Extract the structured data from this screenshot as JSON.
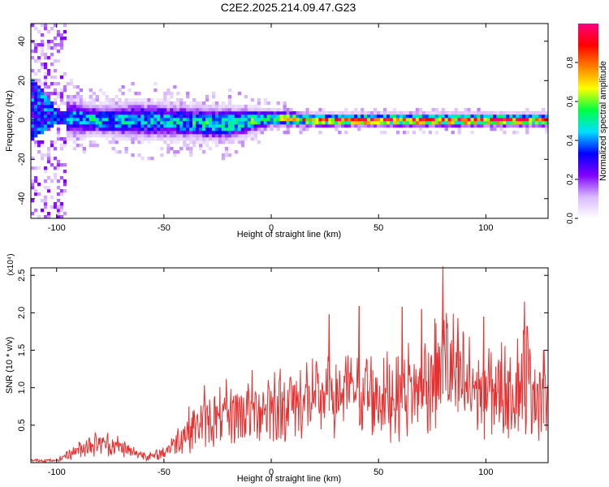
{
  "title": "C2E2.2025.214.09.47.G23",
  "chart_data": [
    {
      "type": "heatmap",
      "xlabel": "Height of straight line (km)",
      "ylabel": "Frequency (Hz)",
      "xlim": [
        -112,
        129
      ],
      "ylim": [
        -50,
        49
      ],
      "x_ticks": [
        -100,
        -50,
        0,
        50,
        100
      ],
      "x_tick_labels": [
        "-100",
        "-50",
        "0",
        "50",
        "100"
      ],
      "y_ticks": [
        -40,
        -20,
        0,
        20,
        40
      ],
      "y_tick_labels": [
        "-40",
        "-20",
        "0",
        "20",
        "40"
      ],
      "colorbar": {
        "label": "Normalized spectral amplitude",
        "range": [
          0,
          1
        ],
        "ticks": [
          0,
          0.2,
          0.4,
          0.6,
          0.8
        ],
        "tick_labels": [
          "0.0",
          "0.2",
          "0.4",
          "0.6",
          "0.8"
        ],
        "colors": [
          "#ffffff",
          "#d8b8ff",
          "#8000ff",
          "#0000ff",
          "#00e0ff",
          "#00ff40",
          "#ffff00",
          "#ff8000",
          "#ff0000",
          "#ff0080"
        ]
      },
      "band": [
        {
          "x": -112,
          "center": 6,
          "half_width": 48,
          "amplitude": 0.2
        },
        {
          "x": -100,
          "center": 2,
          "half_width": 10,
          "amplitude": 0.4
        },
        {
          "x": -80,
          "center": 0,
          "half_width": 7,
          "amplitude": 0.45
        },
        {
          "x": -60,
          "center": 0,
          "half_width": 9,
          "amplitude": 0.4
        },
        {
          "x": -40,
          "center": -1,
          "half_width": 8,
          "amplitude": 0.45
        },
        {
          "x": -20,
          "center": -2,
          "half_width": 8,
          "amplitude": 0.5
        },
        {
          "x": 0,
          "center": 1,
          "half_width": 4,
          "amplitude": 0.55
        },
        {
          "x": 20,
          "center": 0,
          "half_width": 3,
          "amplitude": 0.8
        },
        {
          "x": 50,
          "center": 0,
          "half_width": 3,
          "amplitude": 0.85
        },
        {
          "x": 80,
          "center": 0,
          "half_width": 3,
          "amplitude": 0.85
        },
        {
          "x": 110,
          "center": 0,
          "half_width": 3,
          "amplitude": 0.85
        },
        {
          "x": 129,
          "center": 0,
          "half_width": 3,
          "amplitude": 0.8
        }
      ]
    },
    {
      "type": "line",
      "xlabel": "Height of straight line (km)",
      "ylabel": "SNR (10 * v/v)",
      "y_scale_label": "(x10⁴)",
      "xlim": [
        -112,
        129
      ],
      "ylim": [
        0,
        2.6
      ],
      "x_ticks": [
        -100,
        -50,
        0,
        50,
        100
      ],
      "x_tick_labels": [
        "-100",
        "-50",
        "0",
        "50",
        "100"
      ],
      "y_ticks": [
        0.5,
        1.0,
        1.5,
        2.0,
        2.5
      ],
      "y_tick_labels": [
        "0.5",
        "1.0",
        "1.5",
        "2.0",
        "2.5"
      ],
      "color": "#e83030",
      "envelope": [
        {
          "x": -112,
          "y": 0.02
        },
        {
          "x": -100,
          "y": 0.05
        },
        {
          "x": -95,
          "y": 0.2
        },
        {
          "x": -85,
          "y": 0.45
        },
        {
          "x": -80,
          "y": 0.5
        },
        {
          "x": -75,
          "y": 0.45
        },
        {
          "x": -70,
          "y": 0.4
        },
        {
          "x": -65,
          "y": 0.25
        },
        {
          "x": -60,
          "y": 0.2
        },
        {
          "x": -55,
          "y": 0.15
        },
        {
          "x": -50,
          "y": 0.25
        },
        {
          "x": -45,
          "y": 0.5
        },
        {
          "x": -40,
          "y": 0.75
        },
        {
          "x": -35,
          "y": 0.95
        },
        {
          "x": -30,
          "y": 1.1
        },
        {
          "x": -25,
          "y": 1.05
        },
        {
          "x": -20,
          "y": 1.2
        },
        {
          "x": -10,
          "y": 1.3
        },
        {
          "x": 0,
          "y": 1.4
        },
        {
          "x": 10,
          "y": 1.5
        },
        {
          "x": 20,
          "y": 1.55
        },
        {
          "x": 30,
          "y": 1.75
        },
        {
          "x": 40,
          "y": 1.8
        },
        {
          "x": 50,
          "y": 1.6
        },
        {
          "x": 60,
          "y": 1.75
        },
        {
          "x": 70,
          "y": 1.8
        },
        {
          "x": 80,
          "y": 2.55
        },
        {
          "x": 90,
          "y": 1.85
        },
        {
          "x": 100,
          "y": 1.75
        },
        {
          "x": 110,
          "y": 1.8
        },
        {
          "x": 118,
          "y": 2.15
        },
        {
          "x": 129,
          "y": 1.5
        }
      ],
      "peaks": [
        {
          "x": 80,
          "y": 2.62
        },
        {
          "x": 118,
          "y": 2.15
        },
        {
          "x": 41,
          "y": 2.09
        },
        {
          "x": 70,
          "y": 2.05
        },
        {
          "x": 61,
          "y": 2.08
        },
        {
          "x": 27,
          "y": 1.98
        },
        {
          "x": 99,
          "y": 1.95
        },
        {
          "x": 87,
          "y": 1.93
        },
        {
          "x": 127,
          "y": 1.5
        }
      ]
    }
  ]
}
